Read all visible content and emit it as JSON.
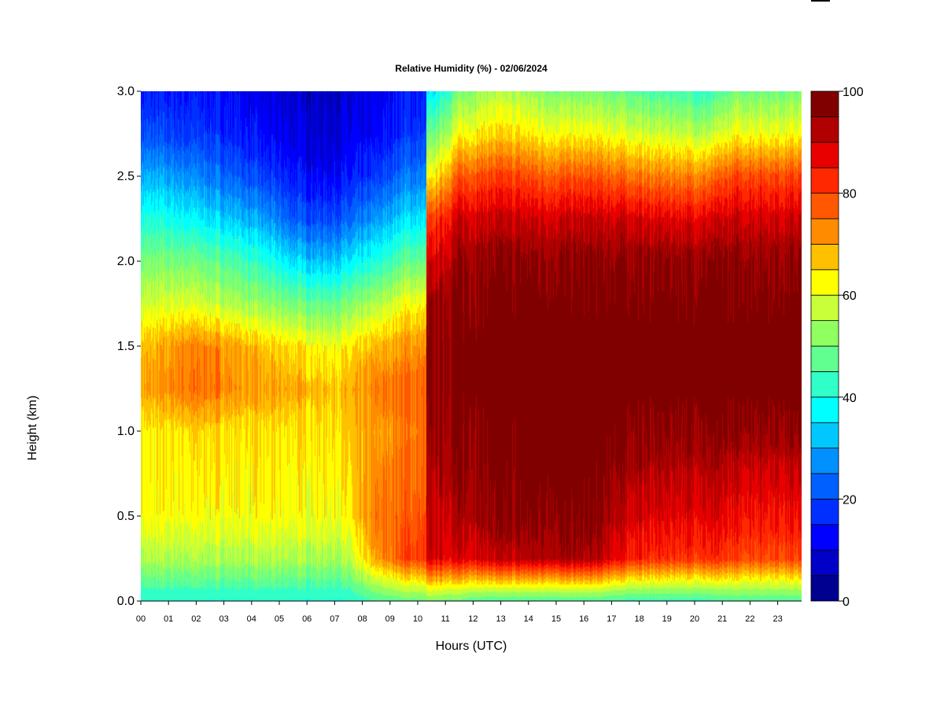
{
  "chart_data": {
    "type": "heatmap",
    "title": "Relative Humidity (%) - 02/06/2024",
    "xlabel": "Hours (UTC)",
    "ylabel": "Height (km)",
    "x_tick_labels": [
      "00",
      "01",
      "02",
      "03",
      "04",
      "05",
      "06",
      "07",
      "08",
      "09",
      "10",
      "11",
      "12",
      "13",
      "14",
      "15",
      "16",
      "17",
      "18",
      "19",
      "20",
      "21",
      "22",
      "23"
    ],
    "y_tick_labels": [
      "0.0",
      "0.5",
      "1.0",
      "1.5",
      "2.0",
      "2.5",
      "3.0"
    ],
    "y_ticks": [
      0,
      0.5,
      1.0,
      1.5,
      2.0,
      2.5,
      3.0
    ],
    "xlim": [
      0,
      23.9
    ],
    "ylim": [
      0,
      3.0
    ],
    "colorbar": {
      "range": [
        0,
        100
      ],
      "step": 5,
      "tick_values": [
        0,
        20,
        40,
        60,
        80,
        100
      ],
      "tick_labels": [
        "0",
        "20",
        "40",
        "60",
        "80",
        "100"
      ],
      "colors": [
        "#000090",
        "#0000C8",
        "#0000FF",
        "#0030FF",
        "#0060FF",
        "#0090FF",
        "#00C8FF",
        "#00FFFF",
        "#30FFC8",
        "#60FF90",
        "#90FF60",
        "#C8FF38",
        "#FFFF00",
        "#FFC000",
        "#FF8C00",
        "#FF5800",
        "#FF2800",
        "#E80000",
        "#B00000",
        "#800000"
      ]
    },
    "heights_km": [
      0,
      0.25,
      0.5,
      0.75,
      1.0,
      1.25,
      1.5,
      1.75,
      2.0,
      2.25,
      2.5,
      2.75,
      3.0
    ],
    "hours": [
      0.5,
      1.5,
      2.5,
      3.5,
      4.5,
      5.5,
      6.5,
      7.5,
      8.5,
      9.5,
      10.5,
      11.5,
      12.5,
      13.5,
      14.5,
      15.5,
      16.5,
      17.5,
      18.5,
      19.5,
      20.5,
      21.5,
      22.5,
      23.5
    ],
    "values": [
      [
        40,
        55,
        62,
        63,
        63,
        70,
        68,
        58,
        50,
        40,
        30,
        20,
        15
      ],
      [
        40,
        55,
        62,
        63,
        65,
        75,
        73,
        60,
        50,
        38,
        28,
        18,
        15
      ],
      [
        40,
        55,
        62,
        64,
        66,
        75,
        73,
        58,
        48,
        35,
        25,
        18,
        14
      ],
      [
        40,
        55,
        62,
        63,
        64,
        72,
        70,
        55,
        45,
        32,
        22,
        15,
        12
      ],
      [
        40,
        55,
        62,
        63,
        64,
        70,
        66,
        52,
        40,
        28,
        18,
        12,
        10
      ],
      [
        40,
        55,
        62,
        63,
        64,
        70,
        65,
        50,
        35,
        22,
        15,
        10,
        8
      ],
      [
        40,
        55,
        62,
        63,
        65,
        68,
        62,
        48,
        32,
        20,
        12,
        8,
        7
      ],
      [
        40,
        55,
        62,
        64,
        66,
        68,
        63,
        50,
        35,
        22,
        14,
        10,
        8
      ],
      [
        45,
        70,
        75,
        72,
        70,
        74,
        68,
        55,
        40,
        28,
        18,
        12,
        10
      ],
      [
        48,
        80,
        78,
        76,
        74,
        76,
        72,
        62,
        48,
        35,
        25,
        18,
        15
      ],
      [
        50,
        88,
        90,
        92,
        93,
        96,
        96,
        94,
        88,
        80,
        62,
        48,
        35
      ],
      [
        48,
        88,
        93,
        95,
        97,
        98,
        98,
        97,
        95,
        90,
        78,
        62,
        50
      ],
      [
        45,
        90,
        95,
        97,
        98,
        99,
        99,
        98,
        96,
        90,
        80,
        65,
        55
      ],
      [
        45,
        91,
        96,
        97,
        98,
        99,
        99,
        98,
        96,
        90,
        80,
        65,
        55
      ],
      [
        45,
        93,
        97,
        98,
        99,
        99,
        99,
        98,
        96,
        90,
        78,
        63,
        52
      ],
      [
        45,
        93,
        97,
        99,
        99,
        99,
        99,
        98,
        96,
        90,
        78,
        62,
        50
      ],
      [
        45,
        92,
        96,
        98,
        99,
        99,
        99,
        98,
        96,
        90,
        78,
        62,
        50
      ],
      [
        43,
        85,
        90,
        94,
        97,
        99,
        99,
        98,
        96,
        90,
        76,
        60,
        48
      ],
      [
        43,
        82,
        88,
        92,
        96,
        99,
        99,
        98,
        96,
        88,
        74,
        58,
        45
      ],
      [
        43,
        82,
        88,
        92,
        96,
        99,
        99,
        98,
        96,
        88,
        74,
        58,
        45
      ],
      [
        43,
        82,
        88,
        92,
        96,
        99,
        99,
        98,
        96,
        88,
        74,
        56,
        42
      ],
      [
        45,
        80,
        86,
        90,
        96,
        99,
        99,
        98,
        96,
        90,
        80,
        62,
        50
      ],
      [
        45,
        80,
        86,
        90,
        96,
        99,
        99,
        98,
        96,
        90,
        80,
        62,
        50
      ],
      [
        45,
        80,
        86,
        90,
        96,
        99,
        99,
        98,
        96,
        90,
        80,
        62,
        50
      ]
    ]
  }
}
